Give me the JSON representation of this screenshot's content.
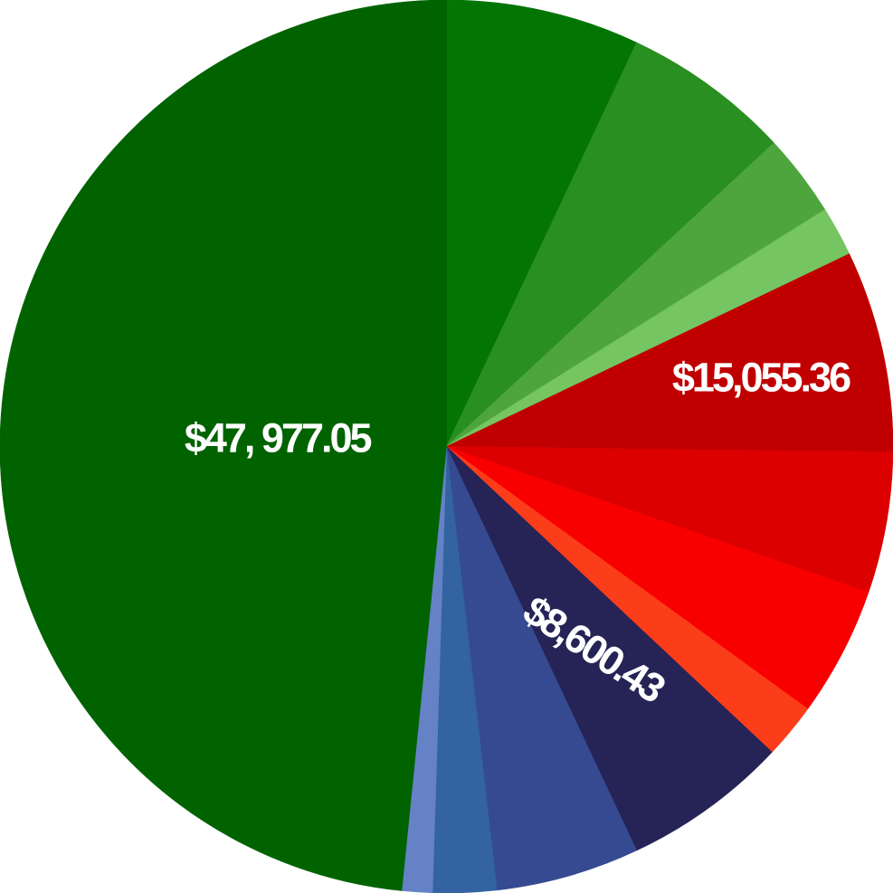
{
  "chart_data": {
    "type": "pie",
    "start": "12 o'clock",
    "direction": "clockwise",
    "slices": [
      {
        "value": 7.0,
        "color": "#037503"
      },
      {
        "value": 6.1,
        "color": "#298f21"
      },
      {
        "value": 3.0,
        "color": "#4ea53d"
      },
      {
        "value": 1.8,
        "color": "#75c562"
      },
      {
        "value": 7.3,
        "color": "#c00000",
        "label": "$15,055.36"
      },
      {
        "value": 5.1,
        "color": "#dc0000"
      },
      {
        "value": 4.7,
        "color": "#f90000"
      },
      {
        "value": 2.0,
        "color": "#fc3d19"
      },
      {
        "value": 6.0,
        "color": "#262356",
        "label": "$8,600.43"
      },
      {
        "value": 5.2,
        "color": "#354a91"
      },
      {
        "value": 2.3,
        "color": "#3363a0"
      },
      {
        "value": 1.1,
        "color": "#6582c6"
      },
      {
        "value": 48.4,
        "color": "#006300",
        "label": "$47, 977.05"
      }
    ]
  }
}
